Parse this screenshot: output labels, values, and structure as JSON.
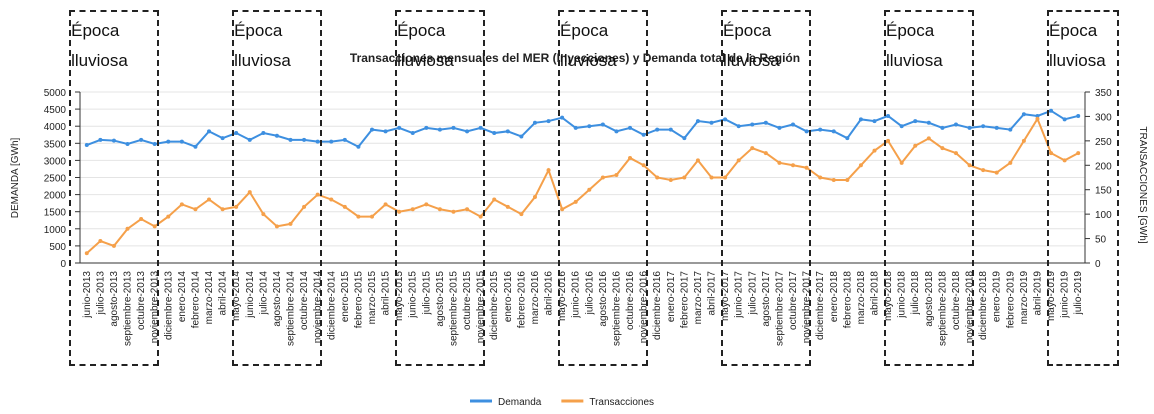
{
  "chart_data": {
    "type": "line",
    "title": "Transacciones mensuales del MER (Inyecciones) y Demanda total de la Región",
    "y_label": "DEMANDA [GWh]",
    "y2_label": "TRANSACCIONES [GWh]",
    "categories": [
      "junio-2013",
      "julio-2013",
      "agosto-2013",
      "septiembre-2013",
      "octubre-2013",
      "noviembre-2013",
      "diciembre-2013",
      "enero-2014",
      "febrero-2014",
      "marzo-2014",
      "abril-2014",
      "mayo-2014",
      "junio-2014",
      "julio-2014",
      "agosto-2014",
      "septiembre-2014",
      "octubre-2014",
      "noviembre-2014",
      "diciembre-2014",
      "enero-2015",
      "febrero-2015",
      "marzo-2015",
      "abril-2015",
      "mayo-2015",
      "junio-2015",
      "julio-2015",
      "agosto-2015",
      "septiembre-2015",
      "octubre-2015",
      "noviembre-2015",
      "diciembre-2015",
      "enero-2016",
      "febrero-2016",
      "marzo-2016",
      "abril-2016",
      "mayo-2016",
      "junio-2016",
      "julio-2016",
      "agosto-2016",
      "septiembre-2016",
      "octubre-2016",
      "noviembre-2016",
      "diciembre-2016",
      "enero-2017",
      "febrero-2017",
      "marzo-2017",
      "abril-2017",
      "mayo-2017",
      "junio-2017",
      "julio-2017",
      "agosto-2017",
      "septiembre-2017",
      "octubre-2017",
      "noviembre-2017",
      "diciembre-2017",
      "enero-2018",
      "febrero-2018",
      "marzo-2018",
      "abril-2018",
      "mayo-2018",
      "junio-2018",
      "julio-2018",
      "agosto-2018",
      "septiembre-2018",
      "octubre-2018",
      "noviembre-2018",
      "diciembre-2018",
      "enero-2019",
      "febrero-2019",
      "marzo-2019",
      "abril-2019",
      "mayo-2019",
      "junio-2019",
      "julio-2019"
    ],
    "series": [
      {
        "name": "Demanda",
        "color": "#3d8fe0",
        "values": [
          3450,
          3600,
          3580,
          3480,
          3600,
          3480,
          3550,
          3550,
          3400,
          3850,
          3650,
          3800,
          3600,
          3800,
          3720,
          3600,
          3600,
          3550,
          3550,
          3600,
          3400,
          3900,
          3850,
          3950,
          3800,
          3950,
          3900,
          3950,
          3850,
          3950,
          3800,
          3850,
          3700,
          4100,
          4150,
          4250,
          3950,
          4000,
          4050,
          3850,
          3950,
          3750,
          3900,
          3900,
          3650,
          4150,
          4100,
          4200,
          4000,
          4050,
          4100,
          3950,
          4050,
          3850,
          3900,
          3850,
          3650,
          4200,
          4150,
          4300,
          4000,
          4150,
          4100,
          3950,
          4050,
          3950,
          4000,
          3950,
          3900,
          4350,
          4300,
          4450,
          4200,
          4300
        ]
      },
      {
        "name": "Transacciones",
        "color": "#f5a04a",
        "axis": "y2",
        "values": [
          20,
          45,
          35,
          70,
          90,
          75,
          95,
          120,
          110,
          130,
          110,
          115,
          145,
          100,
          75,
          80,
          115,
          140,
          130,
          115,
          95,
          95,
          120,
          105,
          110,
          120,
          110,
          105,
          110,
          95,
          130,
          115,
          100,
          135,
          190,
          110,
          125,
          150,
          175,
          180,
          215,
          200,
          175,
          170,
          175,
          210,
          175,
          175,
          210,
          235,
          225,
          205,
          200,
          195,
          175,
          170,
          170,
          200,
          230,
          250,
          205,
          240,
          255,
          235,
          225,
          200,
          190,
          185,
          205,
          250,
          295,
          225,
          210,
          225
        ]
      }
    ],
    "ylim": [
      0,
      5000
    ],
    "yticks": [
      0,
      500,
      1000,
      1500,
      2000,
      2500,
      3000,
      3500,
      4000,
      4500,
      5000
    ],
    "y2lim": [
      0,
      350
    ],
    "y2ticks": [
      0,
      50,
      100,
      150,
      200,
      250,
      300,
      350
    ],
    "grid": true,
    "annotations": [
      {
        "text": "Época lluviosa",
        "from": "junio-2013",
        "to": "octubre-2013"
      },
      {
        "text": "Época lluviosa",
        "from": "junio-2014",
        "to": "octubre-2014"
      },
      {
        "text": "Época lluviosa",
        "from": "junio-2015",
        "to": "octubre-2015"
      },
      {
        "text": "Época lluviosa",
        "from": "junio-2016",
        "to": "octubre-2016"
      },
      {
        "text": "Época lluviosa",
        "from": "junio-2017",
        "to": "octubre-2017"
      },
      {
        "text": "Época lluviosa",
        "from": "junio-2018",
        "to": "octubre-2018"
      },
      {
        "text": "Época lluviosa",
        "from": "junio-2019",
        "to": "julio-2019"
      }
    ]
  }
}
